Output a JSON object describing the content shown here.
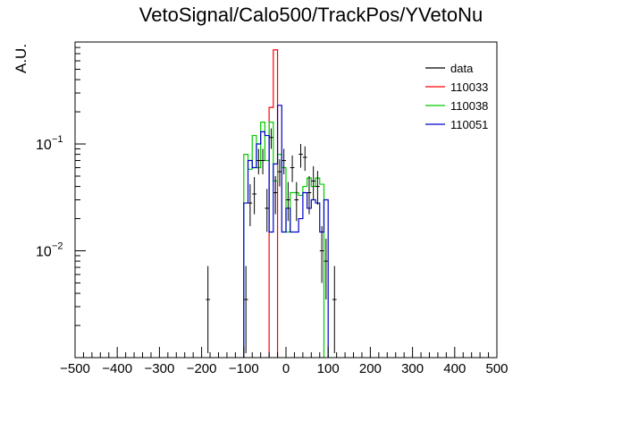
{
  "chart_data": {
    "type": "histogram",
    "title": "VetoSignal/Calo500/TrackPos/YVetoNu",
    "xlabel": "",
    "ylabel": "A.U.",
    "xlim": [
      -500,
      500
    ],
    "ylim": [
      0.001,
      0.9
    ],
    "y_scale": "log",
    "x_ticks": [
      "−500",
      "−400",
      "−300",
      "−200",
      "−100",
      "0",
      "100",
      "200",
      "300",
      "400",
      "500"
    ],
    "y_tick_labels": [
      {
        "mantissa": "10",
        "exp": "−1",
        "value": 0.1
      },
      {
        "mantissa": "10",
        "exp": "−2",
        "value": 0.01
      }
    ],
    "legend_position": "top-right",
    "bin_width": 10,
    "series": [
      {
        "name": "data",
        "color": "#000000",
        "style": "points",
        "points": [
          {
            "x": -185,
            "y": 0.0035,
            "lo": 0.0011,
            "hi": 0.0072
          },
          {
            "x": -95,
            "y": 0.0035,
            "lo": 0.0011,
            "hi": 0.0072
          },
          {
            "x": -85,
            "y": 0.028,
            "lo": 0.017,
            "hi": 0.042
          },
          {
            "x": -75,
            "y": 0.034,
            "lo": 0.022,
            "hi": 0.049
          },
          {
            "x": -65,
            "y": 0.07,
            "lo": 0.052,
            "hi": 0.09
          },
          {
            "x": -55,
            "y": 0.07,
            "lo": 0.052,
            "hi": 0.09
          },
          {
            "x": -45,
            "y": 0.025,
            "lo": 0.015,
            "hi": 0.038
          },
          {
            "x": -35,
            "y": 0.115,
            "lo": 0.09,
            "hi": 0.14
          },
          {
            "x": -25,
            "y": 0.035,
            "lo": 0.022,
            "hi": 0.05
          },
          {
            "x": -15,
            "y": 0.055,
            "lo": 0.04,
            "hi": 0.072
          },
          {
            "x": -5,
            "y": 0.07,
            "lo": 0.052,
            "hi": 0.09
          },
          {
            "x": 5,
            "y": 0.03,
            "lo": 0.019,
            "hi": 0.044
          },
          {
            "x": 15,
            "y": 0.06,
            "lo": 0.044,
            "hi": 0.078
          },
          {
            "x": 25,
            "y": 0.03,
            "lo": 0.019,
            "hi": 0.044
          },
          {
            "x": 35,
            "y": 0.08,
            "lo": 0.06,
            "hi": 0.1
          },
          {
            "x": 45,
            "y": 0.075,
            "lo": 0.056,
            "hi": 0.095
          },
          {
            "x": 55,
            "y": 0.035,
            "lo": 0.022,
            "hi": 0.05
          },
          {
            "x": 65,
            "y": 0.045,
            "lo": 0.03,
            "hi": 0.062
          },
          {
            "x": 75,
            "y": 0.04,
            "lo": 0.027,
            "hi": 0.056
          },
          {
            "x": 85,
            "y": 0.01,
            "lo": 0.005,
            "hi": 0.017
          },
          {
            "x": 95,
            "y": 0.008,
            "lo": 0.0035,
            "hi": 0.013
          },
          {
            "x": 115,
            "y": 0.0035,
            "lo": 0.0011,
            "hi": 0.0072
          }
        ]
      },
      {
        "name": "110033",
        "color": "#ff0000",
        "style": "step",
        "bins": [
          {
            "x0": -40,
            "x1": -30,
            "y": 0.22
          },
          {
            "x0": -30,
            "x1": -20,
            "y": 0.76
          }
        ]
      },
      {
        "name": "110038",
        "color": "#00cc00",
        "style": "step",
        "bins": [
          {
            "x0": -100,
            "x1": -90,
            "y": 0.08
          },
          {
            "x0": -90,
            "x1": -80,
            "y": 0.058
          },
          {
            "x0": -80,
            "x1": -70,
            "y": 0.12
          },
          {
            "x0": -70,
            "x1": -60,
            "y": 0.06
          },
          {
            "x0": -60,
            "x1": -50,
            "y": 0.16
          },
          {
            "x0": -50,
            "x1": -40,
            "y": 0.07
          },
          {
            "x0": -40,
            "x1": -30,
            "y": 0.16
          },
          {
            "x0": -30,
            "x1": -20,
            "y": 0.045
          },
          {
            "x0": -20,
            "x1": -10,
            "y": 0.08
          },
          {
            "x0": -10,
            "x1": 0,
            "y": 0.06
          },
          {
            "x0": 0,
            "x1": 10,
            "y": 0.015
          },
          {
            "x0": 10,
            "x1": 20,
            "y": 0.035
          },
          {
            "x0": 20,
            "x1": 30,
            "y": 0.035
          },
          {
            "x0": 30,
            "x1": 40,
            "y": 0.033
          },
          {
            "x0": 40,
            "x1": 50,
            "y": 0.04
          },
          {
            "x0": 50,
            "x1": 60,
            "y": 0.048
          },
          {
            "x0": 60,
            "x1": 70,
            "y": 0.04
          },
          {
            "x0": 70,
            "x1": 80,
            "y": 0.048
          },
          {
            "x0": 80,
            "x1": 90,
            "y": 0.042
          }
        ]
      },
      {
        "name": "110051",
        "color": "#0000cc",
        "style": "step",
        "bins": [
          {
            "x0": -100,
            "x1": -90,
            "y": 0.028
          },
          {
            "x0": -90,
            "x1": -80,
            "y": 0.07
          },
          {
            "x0": -80,
            "x1": -70,
            "y": 0.06
          },
          {
            "x0": -70,
            "x1": -60,
            "y": 0.1
          },
          {
            "x0": -60,
            "x1": -50,
            "y": 0.13
          },
          {
            "x0": -50,
            "x1": -40,
            "y": 0.12
          },
          {
            "x0": -40,
            "x1": -30,
            "y": 0.015
          },
          {
            "x0": -30,
            "x1": -20,
            "y": 0.065
          },
          {
            "x0": -20,
            "x1": -10,
            "y": 0.23
          },
          {
            "x0": -10,
            "x1": 0,
            "y": 0.015
          },
          {
            "x0": 0,
            "x1": 10,
            "y": 0.025
          },
          {
            "x0": 10,
            "x1": 20,
            "y": 0.015
          },
          {
            "x0": 20,
            "x1": 30,
            "y": 0.015
          },
          {
            "x0": 30,
            "x1": 40,
            "y": 0.02
          },
          {
            "x0": 40,
            "x1": 50,
            "y": 0.035
          },
          {
            "x0": 50,
            "x1": 60,
            "y": 0.025
          },
          {
            "x0": 60,
            "x1": 70,
            "y": 0.03
          },
          {
            "x0": 70,
            "x1": 80,
            "y": 0.028
          },
          {
            "x0": 80,
            "x1": 90,
            "y": 0.015
          },
          {
            "x0": 90,
            "x1": 100,
            "y": 0.03
          }
        ]
      }
    ]
  }
}
